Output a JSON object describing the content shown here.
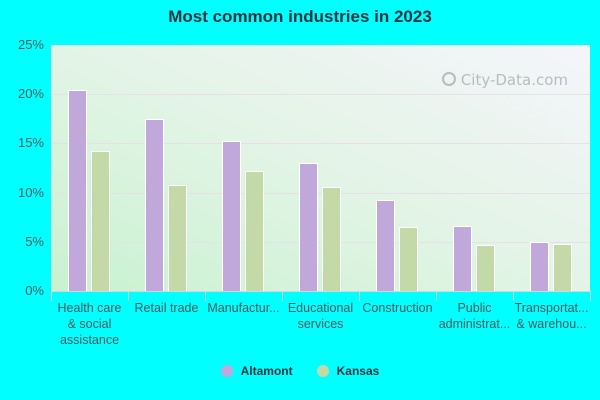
{
  "chart_data": {
    "type": "bar",
    "title": "Most common industries in 2023",
    "xlabel": "",
    "ylabel": "",
    "ylim": [
      0,
      25
    ],
    "yticks": [
      "0%",
      "5%",
      "10%",
      "15%",
      "20%",
      "25%"
    ],
    "grid": true,
    "legend_position": "bottom",
    "categories": [
      "Health care & social assistance",
      "Retail trade",
      "Manufactur...",
      "Educational services",
      "Construction",
      "Public administrat...",
      "Transportat... & warehou..."
    ],
    "series": [
      {
        "name": "Altamont",
        "color": "#c0a9da",
        "values": [
          20.3,
          17.4,
          15.1,
          12.9,
          9.1,
          6.5,
          4.9
        ]
      },
      {
        "name": "Kansas",
        "color": "#c4d9a8",
        "values": [
          14.1,
          10.7,
          12.1,
          10.5,
          6.4,
          4.6,
          4.7
        ]
      }
    ]
  },
  "axis": {
    "yticks": [
      "25%",
      "20%",
      "15%",
      "10%",
      "5%",
      "0%"
    ],
    "xlabels": [
      [
        "Health care",
        "& social",
        "assistance"
      ],
      [
        "Retail trade"
      ],
      [
        "Manufactur..."
      ],
      [
        "Educational",
        "services"
      ],
      [
        "Construction"
      ],
      [
        "Public",
        "administrat..."
      ],
      [
        "Transportat...",
        "& warehou..."
      ]
    ]
  },
  "watermark": "City-Data.com",
  "legend": {
    "items": [
      {
        "label": "Altamont",
        "color": "#c0a9da"
      },
      {
        "label": "Kansas",
        "color": "#c4d9a8"
      }
    ]
  },
  "colors": {
    "background": "#00ffff",
    "altamont": "#c0a9da",
    "kansas": "#c4d9a8"
  }
}
